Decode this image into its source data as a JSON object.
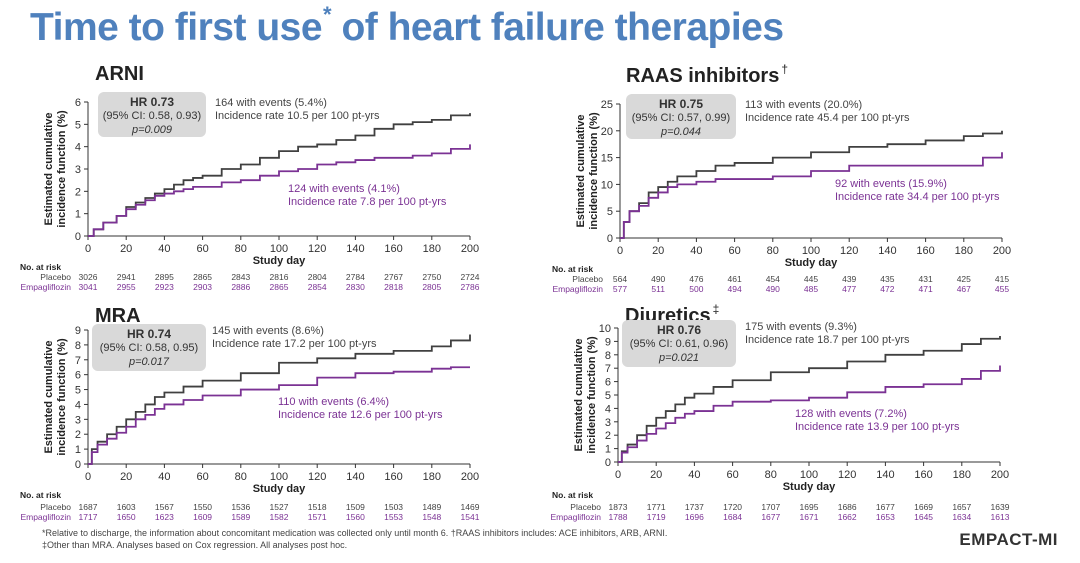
{
  "title": {
    "text": "Time to first use",
    "sup": "*",
    "rest": "of heart failure therapies"
  },
  "footnote": {
    "line1": "*Relative to discharge, the information about concomitant medication was collected only until month 6. †RAAS inhibitors includes: ACE inhibitors, ARB, ARNI.",
    "line2": "‡Other than MRA. Analyses based on Cox regression. All analyses post hoc."
  },
  "brand": "EMPACT-MI",
  "colors": {
    "placebo": "#404040",
    "empagliflozin": "#7b3294",
    "title": "#4f81bd",
    "hrbox": "#d9d9d9"
  },
  "risk_labels": {
    "header": "No. at risk",
    "placebo": "Placebo",
    "empagliflozin": "Empagliflozin"
  },
  "chart_data": [
    {
      "type": "line",
      "title": "ARNI",
      "title_sup": "",
      "xlabel": "Study day",
      "ylabel_line1": "Estimated cumulative",
      "ylabel_line2": "incidence function (%)",
      "xlim": [
        0,
        200
      ],
      "ylim": [
        0,
        6
      ],
      "xticks": [
        0,
        20,
        40,
        60,
        80,
        100,
        120,
        140,
        160,
        180,
        200
      ],
      "yticks": [
        0,
        1,
        2,
        3,
        4,
        5,
        6
      ],
      "hr": {
        "hr": "HR 0.73",
        "ci": "(95% CI: 0.58, 0.93)",
        "p": "p=0.009"
      },
      "placebo_note": {
        "line1": "164 with events (5.4%)",
        "line2": "Incidence rate 10.5 per 100 pt-yrs"
      },
      "empa_note": {
        "line1": "124 with events (4.1%)",
        "line2": "Incidence rate 7.8 per 100 pt-yrs"
      },
      "series": [
        {
          "name": "Placebo",
          "x": [
            0,
            3,
            8,
            15,
            20,
            25,
            30,
            35,
            40,
            45,
            50,
            55,
            60,
            70,
            80,
            90,
            100,
            110,
            120,
            130,
            140,
            150,
            160,
            170,
            180,
            190,
            200
          ],
          "values": [
            0,
            0.3,
            0.6,
            0.9,
            1.3,
            1.5,
            1.7,
            1.9,
            2.1,
            2.3,
            2.5,
            2.6,
            2.7,
            3.0,
            3.2,
            3.5,
            3.8,
            4.0,
            4.1,
            4.3,
            4.5,
            4.8,
            5.0,
            5.1,
            5.2,
            5.4,
            5.5
          ]
        },
        {
          "name": "Empagliflozin",
          "x": [
            0,
            3,
            8,
            15,
            20,
            25,
            30,
            35,
            40,
            45,
            50,
            55,
            60,
            70,
            80,
            90,
            100,
            110,
            120,
            130,
            140,
            150,
            160,
            170,
            180,
            190,
            200
          ],
          "values": [
            0,
            0.3,
            0.6,
            0.9,
            1.2,
            1.4,
            1.6,
            1.8,
            1.9,
            2.0,
            2.1,
            2.2,
            2.2,
            2.4,
            2.5,
            2.7,
            2.9,
            3.0,
            3.2,
            3.3,
            3.4,
            3.5,
            3.5,
            3.6,
            3.7,
            3.9,
            4.1
          ]
        }
      ],
      "risk": {
        "placebo": [
          "3026",
          "2941",
          "2895",
          "2865",
          "2843",
          "2816",
          "2804",
          "2784",
          "2767",
          "2750",
          "2724"
        ],
        "empagliflozin": [
          "3041",
          "2955",
          "2923",
          "2903",
          "2886",
          "2865",
          "2854",
          "2830",
          "2818",
          "2805",
          "2786"
        ]
      }
    },
    {
      "type": "line",
      "title": "RAAS inhibitors",
      "title_sup": "†",
      "xlabel": "Study day",
      "ylabel_line1": "Estimated cumulative",
      "ylabel_line2": "incidence function (%)",
      "xlim": [
        0,
        200
      ],
      "ylim": [
        0,
        25
      ],
      "xticks": [
        0,
        20,
        40,
        60,
        80,
        100,
        120,
        140,
        160,
        180,
        200
      ],
      "yticks": [
        0,
        5,
        10,
        15,
        20,
        25
      ],
      "hr": {
        "hr": "HR 0.75",
        "ci": "(95% CI: 0.57, 0.99)",
        "p": "p=0.044"
      },
      "placebo_note": {
        "line1": "113 with events (20.0%)",
        "line2": "Incidence rate 45.4 per 100 pt-yrs"
      },
      "empa_note": {
        "line1": "92 with events (15.9%)",
        "line2": "Incidence rate 34.4 per 100 pt-yrs"
      },
      "series": [
        {
          "name": "Placebo",
          "x": [
            0,
            2,
            5,
            10,
            15,
            20,
            25,
            30,
            40,
            50,
            60,
            80,
            100,
            120,
            140,
            160,
            180,
            190,
            200
          ],
          "values": [
            0,
            3,
            5,
            6.5,
            8.5,
            9.5,
            10.5,
            11.5,
            12.5,
            13.5,
            14,
            15,
            16,
            17,
            17.5,
            18.2,
            19,
            19.5,
            20
          ]
        },
        {
          "name": "Empagliflozin",
          "x": [
            0,
            2,
            5,
            10,
            15,
            20,
            25,
            30,
            40,
            50,
            60,
            80,
            100,
            120,
            140,
            160,
            180,
            190,
            200
          ],
          "values": [
            0,
            3,
            5,
            6,
            7.5,
            8.5,
            9.5,
            10,
            10.5,
            11,
            11,
            11.5,
            12.5,
            13.5,
            13.5,
            13.5,
            13.5,
            15,
            16
          ]
        }
      ],
      "risk": {
        "placebo": [
          "564",
          "490",
          "476",
          "461",
          "454",
          "445",
          "439",
          "435",
          "431",
          "425",
          "415"
        ],
        "empagliflozin": [
          "577",
          "511",
          "500",
          "494",
          "490",
          "485",
          "477",
          "472",
          "471",
          "467",
          "455"
        ]
      }
    },
    {
      "type": "line",
      "title": "MRA",
      "title_sup": "",
      "xlabel": "Study day",
      "ylabel_line1": "Estimated cumulative",
      "ylabel_line2": "incidence function (%)",
      "xlim": [
        0,
        200
      ],
      "ylim": [
        0,
        9
      ],
      "xticks": [
        0,
        20,
        40,
        60,
        80,
        100,
        120,
        140,
        160,
        180,
        200
      ],
      "yticks": [
        0,
        1,
        2,
        3,
        4,
        5,
        6,
        7,
        8,
        9
      ],
      "hr": {
        "hr": "HR 0.74",
        "ci": "(95% CI: 0.58, 0.95)",
        "p": "p=0.017"
      },
      "placebo_note": {
        "line1": "145 with events (8.6%)",
        "line2": "Incidence rate 17.2 per 100 pt-yrs"
      },
      "empa_note": {
        "line1": "110 with events (6.4%)",
        "line2": "Incidence rate 12.6 per 100 pt-yrs"
      },
      "series": [
        {
          "name": "Placebo",
          "x": [
            0,
            2,
            5,
            10,
            15,
            20,
            25,
            30,
            35,
            40,
            50,
            60,
            80,
            100,
            120,
            140,
            160,
            180,
            190,
            200
          ],
          "values": [
            0,
            1.0,
            1.5,
            2.0,
            2.5,
            3.0,
            3.5,
            4.0,
            4.5,
            4.8,
            5.2,
            5.6,
            6.1,
            6.8,
            7.1,
            7.4,
            7.6,
            7.9,
            8.3,
            8.7
          ]
        },
        {
          "name": "Empagliflozin",
          "x": [
            0,
            2,
            5,
            10,
            15,
            20,
            25,
            30,
            35,
            40,
            50,
            60,
            80,
            100,
            120,
            140,
            160,
            180,
            190,
            200
          ],
          "values": [
            0,
            0.8,
            1.3,
            1.7,
            2.1,
            2.5,
            3.0,
            3.3,
            3.7,
            4.0,
            4.3,
            4.6,
            5.0,
            5.3,
            5.8,
            6.1,
            6.2,
            6.4,
            6.5,
            6.5
          ]
        }
      ],
      "risk": {
        "placebo": [
          "1687",
          "1603",
          "1567",
          "1550",
          "1536",
          "1527",
          "1518",
          "1509",
          "1503",
          "1489",
          "1469"
        ],
        "empagliflozin": [
          "1717",
          "1650",
          "1623",
          "1609",
          "1589",
          "1582",
          "1571",
          "1560",
          "1553",
          "1548",
          "1541"
        ]
      }
    },
    {
      "type": "line",
      "title": "Diuretics",
      "title_sup": "‡",
      "xlabel": "Study day",
      "ylabel_line1": "Estimated cumulative",
      "ylabel_line2": "incidence function (%)",
      "xlim": [
        0,
        200
      ],
      "ylim": [
        0,
        10
      ],
      "xticks": [
        0,
        20,
        40,
        60,
        80,
        100,
        120,
        140,
        160,
        180,
        200
      ],
      "yticks": [
        0,
        1,
        2,
        3,
        4,
        5,
        6,
        7,
        8,
        9,
        10
      ],
      "hr": {
        "hr": "HR 0.76",
        "ci": "(95% CI: 0.61, 0.96)",
        "p": "p=0.021"
      },
      "placebo_note": {
        "line1": "175 with events (9.3%)",
        "line2": "Incidence rate 18.7 per 100 pt-yrs"
      },
      "empa_note": {
        "line1": "128 with events (7.2%)",
        "line2": "Incidence rate 13.9 per 100 pt-yrs"
      },
      "series": [
        {
          "name": "Placebo",
          "x": [
            0,
            2,
            5,
            10,
            15,
            20,
            25,
            30,
            35,
            40,
            50,
            60,
            80,
            100,
            120,
            140,
            160,
            180,
            190,
            200
          ],
          "values": [
            0,
            0.8,
            1.3,
            2.0,
            2.7,
            3.3,
            3.8,
            4.3,
            4.8,
            5.1,
            5.6,
            6.1,
            6.7,
            7.0,
            7.5,
            8.0,
            8.3,
            8.8,
            9.2,
            9.4
          ]
        },
        {
          "name": "Empagliflozin",
          "x": [
            0,
            2,
            5,
            10,
            15,
            20,
            25,
            30,
            35,
            40,
            50,
            60,
            80,
            100,
            120,
            140,
            160,
            180,
            190,
            200
          ],
          "values": [
            0,
            0.7,
            1.1,
            1.6,
            2.1,
            2.5,
            2.9,
            3.3,
            3.6,
            3.8,
            4.2,
            4.5,
            4.6,
            4.8,
            5.2,
            5.6,
            5.8,
            6.2,
            6.8,
            7.2
          ]
        }
      ],
      "risk": {
        "placebo": [
          "1873",
          "1771",
          "1737",
          "1720",
          "1707",
          "1695",
          "1686",
          "1677",
          "1669",
          "1657",
          "1639"
        ],
        "empagliflozin": [
          "1788",
          "1719",
          "1696",
          "1684",
          "1677",
          "1671",
          "1662",
          "1653",
          "1645",
          "1634",
          "1613"
        ]
      }
    }
  ]
}
